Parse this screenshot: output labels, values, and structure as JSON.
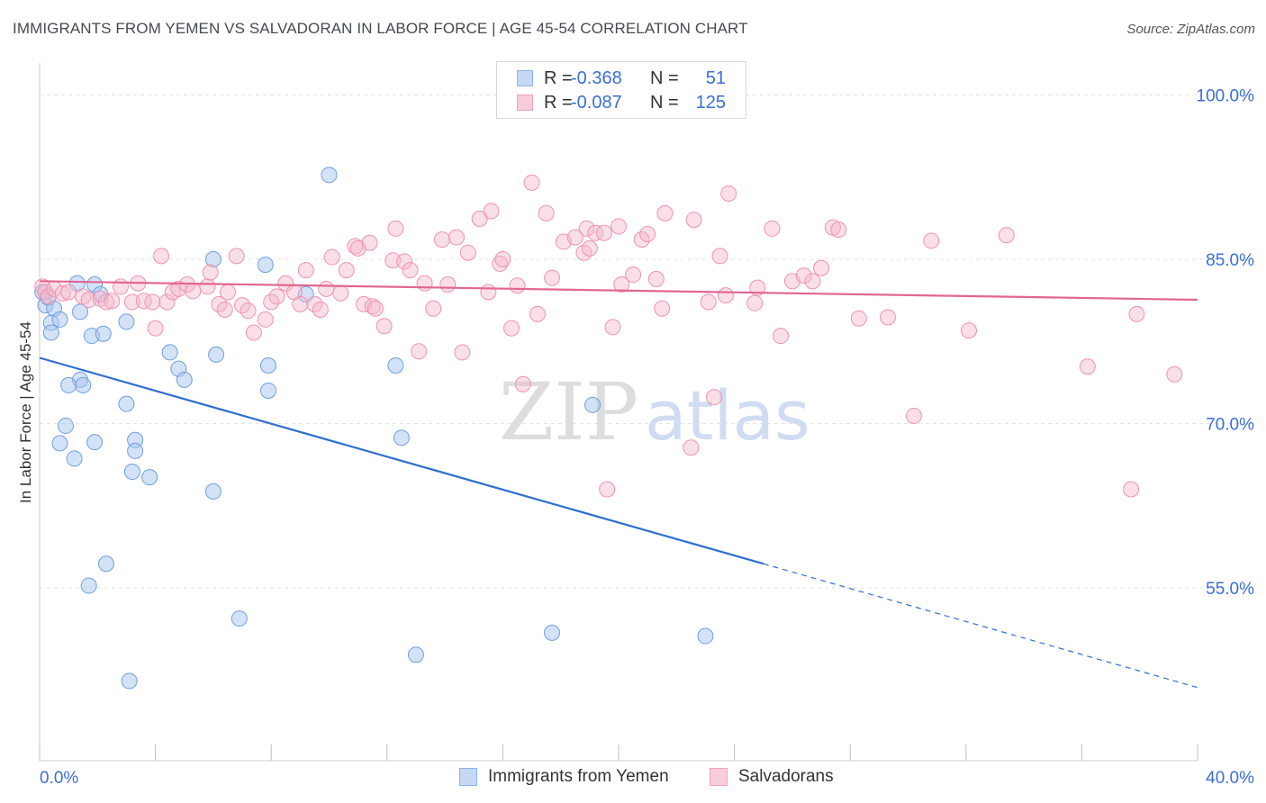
{
  "title": "IMMIGRANTS FROM YEMEN VS SALVADORAN IN LABOR FORCE | AGE 45-54 CORRELATION CHART",
  "source": "Source: ZipAtlas.com",
  "watermark": {
    "zip": "ZIP",
    "atlas": "atlas"
  },
  "legend_top": [
    {
      "r_label": "R =",
      "r_value": "-0.368",
      "n_label": "N =",
      "n_value": "51",
      "color": "#a9c6f0"
    },
    {
      "r_label": "R =",
      "r_value": "-0.087",
      "n_label": "N =",
      "n_value": "125",
      "color": "#f5b8c9"
    }
  ],
  "legend_bottom": [
    {
      "label": "Immigrants from Yemen",
      "color": "#a9c6f0"
    },
    {
      "label": "Salvadorans",
      "color": "#f5b8c9"
    }
  ],
  "chart_data": {
    "type": "scatter",
    "title": "IMMIGRANTS FROM YEMEN VS SALVADORAN IN LABOR FORCE | AGE 45-54 CORRELATION CHART",
    "xlabel": "",
    "ylabel": "In Labor Force | Age 45-54",
    "xlim": [
      0,
      40
    ],
    "ylim": [
      42,
      102
    ],
    "x_tick_labels": [
      "0.0%",
      "40.0%"
    ],
    "y_ticks": [
      55,
      70,
      85,
      100
    ],
    "y_tick_labels": [
      "55.0%",
      "70.0%",
      "85.0%",
      "100.0%"
    ],
    "grid": true,
    "colors": {
      "yemen_fill": "#a9c6f0",
      "yemen_stroke": "#6f9fe0",
      "yemen_line": "#2f6fd0",
      "salv_fill": "#f5b8c9",
      "salv_stroke": "#ee94b0",
      "salv_line": "#e2668f",
      "axis_text": "#3a6fd8"
    },
    "series": [
      {
        "name": "Immigrants from Yemen",
        "trend": {
          "x0": 0,
          "y0": 76.0,
          "x1": 25.0,
          "y1": 57.2,
          "dash_to_x": 40.0,
          "dash_to_y": 45.9
        },
        "points": [
          [
            0.1,
            82
          ],
          [
            0.2,
            80.8
          ],
          [
            0.3,
            81.5
          ],
          [
            0.5,
            80.5
          ],
          [
            0.4,
            79.2
          ],
          [
            0.7,
            79.5
          ],
          [
            0.4,
            78.3
          ],
          [
            1.3,
            82.8
          ],
          [
            1.9,
            82.7
          ],
          [
            2.1,
            81.8
          ],
          [
            1.8,
            78
          ],
          [
            2.2,
            78.2
          ],
          [
            1.4,
            80.2
          ],
          [
            1.4,
            74
          ],
          [
            1.0,
            73.5
          ],
          [
            1.5,
            73.5
          ],
          [
            0.9,
            69.8
          ],
          [
            0.7,
            68.2
          ],
          [
            1.9,
            68.3
          ],
          [
            1.2,
            66.8
          ],
          [
            3.0,
            79.3
          ],
          [
            3.0,
            71.8
          ],
          [
            3.3,
            68.5
          ],
          [
            3.3,
            67.5
          ],
          [
            3.2,
            65.6
          ],
          [
            3.8,
            65.1
          ],
          [
            4.5,
            76.5
          ],
          [
            4.8,
            75
          ],
          [
            5.0,
            74
          ],
          [
            6.0,
            63.8
          ],
          [
            6.0,
            85
          ],
          [
            6.1,
            76.3
          ],
          [
            7.8,
            84.5
          ],
          [
            7.9,
            73
          ],
          [
            7.9,
            75.3
          ],
          [
            9.2,
            81.8
          ],
          [
            10.0,
            92.7
          ],
          [
            12.3,
            75.3
          ],
          [
            12.5,
            68.7
          ],
          [
            19.1,
            71.7
          ],
          [
            2.3,
            57.2
          ],
          [
            1.7,
            55.2
          ],
          [
            6.9,
            52.2
          ],
          [
            3.1,
            46.5
          ],
          [
            13.0,
            48.9
          ],
          [
            17.7,
            50.9
          ],
          [
            23.0,
            50.6
          ]
        ]
      },
      {
        "name": "Salvadorans",
        "trend": {
          "x0": 0,
          "y0": 83.0,
          "x1": 40.0,
          "y1": 81.3
        },
        "points": [
          [
            0.1,
            82.5
          ],
          [
            0.2,
            82.0
          ],
          [
            0.3,
            81.6
          ],
          [
            0.5,
            82.3
          ],
          [
            0.8,
            81.9
          ],
          [
            1.0,
            82.0
          ],
          [
            1.5,
            81.6
          ],
          [
            1.7,
            81.3
          ],
          [
            2.1,
            81.4
          ],
          [
            2.3,
            81.1
          ],
          [
            2.5,
            81.2
          ],
          [
            2.8,
            82.5
          ],
          [
            3.2,
            81.1
          ],
          [
            3.4,
            82.8
          ],
          [
            3.6,
            81.2
          ],
          [
            3.9,
            81.1
          ],
          [
            4.0,
            78.7
          ],
          [
            4.2,
            85.3
          ],
          [
            4.4,
            81.1
          ],
          [
            4.6,
            82.0
          ],
          [
            4.8,
            82.3
          ],
          [
            5.1,
            82.7
          ],
          [
            5.3,
            82.1
          ],
          [
            5.8,
            82.5
          ],
          [
            5.9,
            83.8
          ],
          [
            6.2,
            80.9
          ],
          [
            6.4,
            80.4
          ],
          [
            6.5,
            82.0
          ],
          [
            6.8,
            85.3
          ],
          [
            7.0,
            80.8
          ],
          [
            7.2,
            80.3
          ],
          [
            7.4,
            78.3
          ],
          [
            7.8,
            79.5
          ],
          [
            8.0,
            81.1
          ],
          [
            8.2,
            81.6
          ],
          [
            8.5,
            82.8
          ],
          [
            8.8,
            82.0
          ],
          [
            9.0,
            80.9
          ],
          [
            9.2,
            84.0
          ],
          [
            9.5,
            80.9
          ],
          [
            9.7,
            80.4
          ],
          [
            9.9,
            82.3
          ],
          [
            10.1,
            85.2
          ],
          [
            10.4,
            81.9
          ],
          [
            10.6,
            84.0
          ],
          [
            10.9,
            86.2
          ],
          [
            11.0,
            86.0
          ],
          [
            11.2,
            80.9
          ],
          [
            11.5,
            80.7
          ],
          [
            11.6,
            80.5
          ],
          [
            11.9,
            78.9
          ],
          [
            11.4,
            86.5
          ],
          [
            12.2,
            84.9
          ],
          [
            12.3,
            87.8
          ],
          [
            12.6,
            84.8
          ],
          [
            12.8,
            84.0
          ],
          [
            13.1,
            76.6
          ],
          [
            13.3,
            82.8
          ],
          [
            13.6,
            80.5
          ],
          [
            13.9,
            86.8
          ],
          [
            14.1,
            82.7
          ],
          [
            14.4,
            87.0
          ],
          [
            14.6,
            76.5
          ],
          [
            14.8,
            85.6
          ],
          [
            15.2,
            88.7
          ],
          [
            15.5,
            82.0
          ],
          [
            15.6,
            89.4
          ],
          [
            15.9,
            84.6
          ],
          [
            16.0,
            85.0
          ],
          [
            16.3,
            78.7
          ],
          [
            16.5,
            82.6
          ],
          [
            16.7,
            73.6
          ],
          [
            17.0,
            92.0
          ],
          [
            17.2,
            80.0
          ],
          [
            17.5,
            89.2
          ],
          [
            17.7,
            83.3
          ],
          [
            18.1,
            86.6
          ],
          [
            18.5,
            87.0
          ],
          [
            18.8,
            85.6
          ],
          [
            18.9,
            87.8
          ],
          [
            19.0,
            86.0
          ],
          [
            19.2,
            87.4
          ],
          [
            19.5,
            87.4
          ],
          [
            19.6,
            64.0
          ],
          [
            19.8,
            78.8
          ],
          [
            20.0,
            88.0
          ],
          [
            20.1,
            82.7
          ],
          [
            20.5,
            83.6
          ],
          [
            20.8,
            86.8
          ],
          [
            21.0,
            87.3
          ],
          [
            21.3,
            83.2
          ],
          [
            21.5,
            80.5
          ],
          [
            21.6,
            89.2
          ],
          [
            22.5,
            67.8
          ],
          [
            22.6,
            88.6
          ],
          [
            23.1,
            81.1
          ],
          [
            23.3,
            72.4
          ],
          [
            23.5,
            85.3
          ],
          [
            23.7,
            81.7
          ],
          [
            23.8,
            91.0
          ],
          [
            24.7,
            81.0
          ],
          [
            24.8,
            82.4
          ],
          [
            25.3,
            87.8
          ],
          [
            25.6,
            78.0
          ],
          [
            26.0,
            83.0
          ],
          [
            26.4,
            83.5
          ],
          [
            26.7,
            83.0
          ],
          [
            27.0,
            84.2
          ],
          [
            27.4,
            87.9
          ],
          [
            27.6,
            87.7
          ],
          [
            28.3,
            79.6
          ],
          [
            29.3,
            79.7
          ],
          [
            30.2,
            70.7
          ],
          [
            30.8,
            86.7
          ],
          [
            32.1,
            78.5
          ],
          [
            33.4,
            87.2
          ],
          [
            36.2,
            75.2
          ],
          [
            37.7,
            64.0
          ],
          [
            37.9,
            80.0
          ],
          [
            39.2,
            74.5
          ]
        ]
      }
    ]
  }
}
